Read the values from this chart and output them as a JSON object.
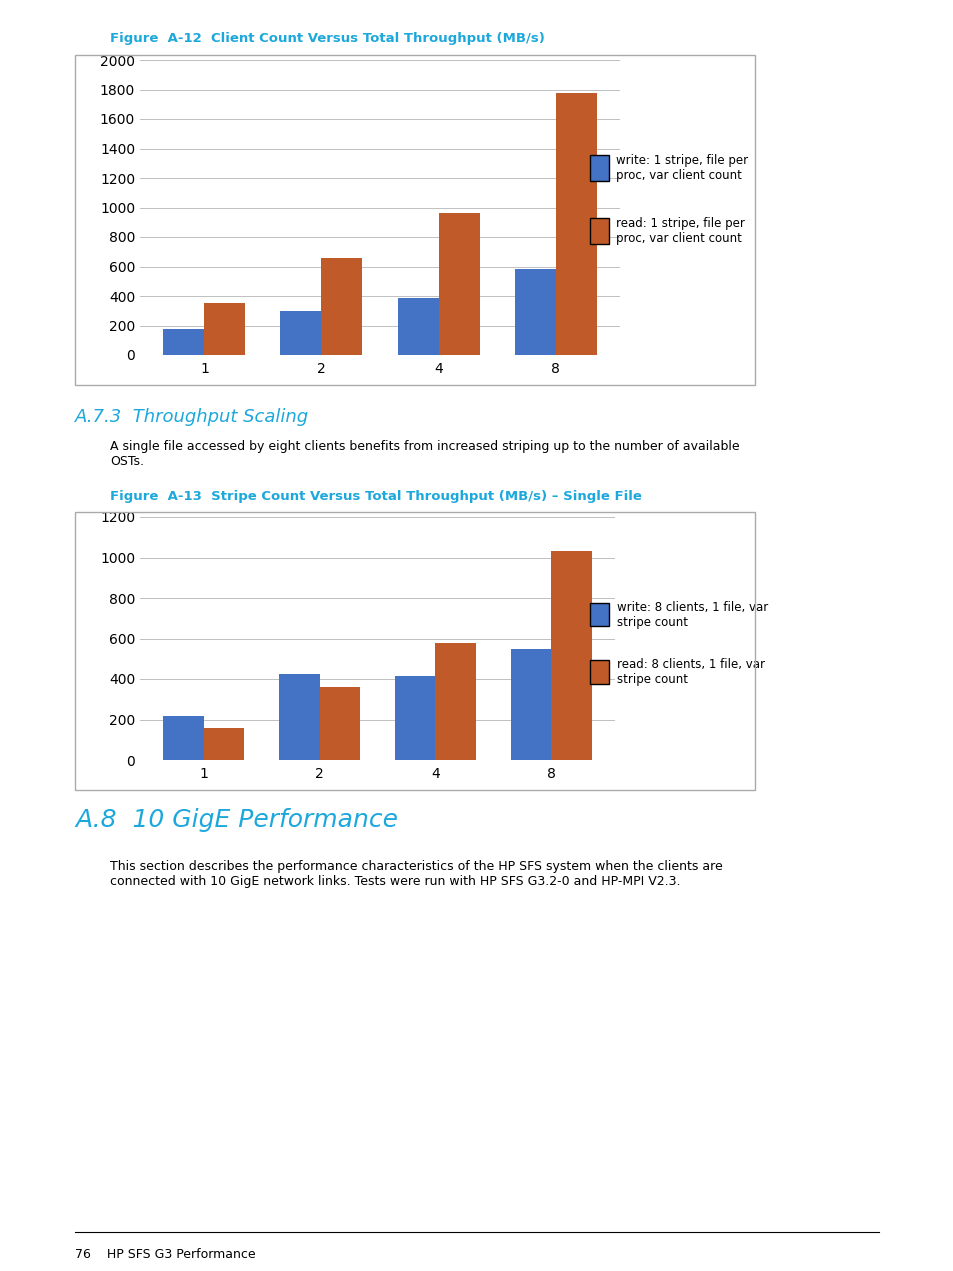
{
  "chart1": {
    "title": "Figure  A-12  Client Count Versus Total Throughput (MB/s)",
    "categories": [
      "1",
      "2",
      "4",
      "8"
    ],
    "write_values": [
      175,
      295,
      385,
      580
    ],
    "read_values": [
      350,
      655,
      965,
      1775
    ],
    "ylim": [
      0,
      2000
    ],
    "yticks": [
      0,
      200,
      400,
      600,
      800,
      1000,
      1200,
      1400,
      1600,
      1800,
      2000
    ],
    "write_label": "write: 1 stripe, file per\nproc, var client count",
    "read_label": "read: 1 stripe, file per\nproc, var client count"
  },
  "chart2": {
    "title": "Figure  A-13  Stripe Count Versus Total Throughput (MB/s) – Single File",
    "categories": [
      "1",
      "2",
      "4",
      "8"
    ],
    "write_values": [
      215,
      425,
      415,
      550
    ],
    "read_values": [
      160,
      360,
      580,
      1030
    ],
    "ylim": [
      0,
      1200
    ],
    "yticks": [
      0,
      200,
      400,
      600,
      800,
      1000,
      1200
    ],
    "write_label": "write: 8 clients, 1 file, var\nstripe count",
    "read_label": "read: 8 clients, 1 file, var\nstripe count"
  },
  "section_a73_title": "A.7.3  Throughput Scaling",
  "section_a73_text": "A single file accessed by eight clients benefits from increased striping up to the number of available\nOSTs.",
  "section_a8_title": "A.8  10 GigE Performance",
  "section_a8_text": "This section describes the performance characteristics of the HP SFS system when the clients are\nconnected with 10 GigE network links. Tests were run with HP SFS G3.2-0 and HP-MPI V2.3.",
  "footer_text": "76    HP SFS G3 Performance",
  "write_color": "#4472C4",
  "read_color": "#C05A28",
  "title_color": "#1DA8DC",
  "section_heading_color": "#1DA8DC",
  "bar_width": 0.35,
  "grid_color": "#C0C0C0",
  "box_edge_color": "#AAAAAA",
  "background_color": "#FFFFFF",
  "page_bg": "#FFFFFF"
}
